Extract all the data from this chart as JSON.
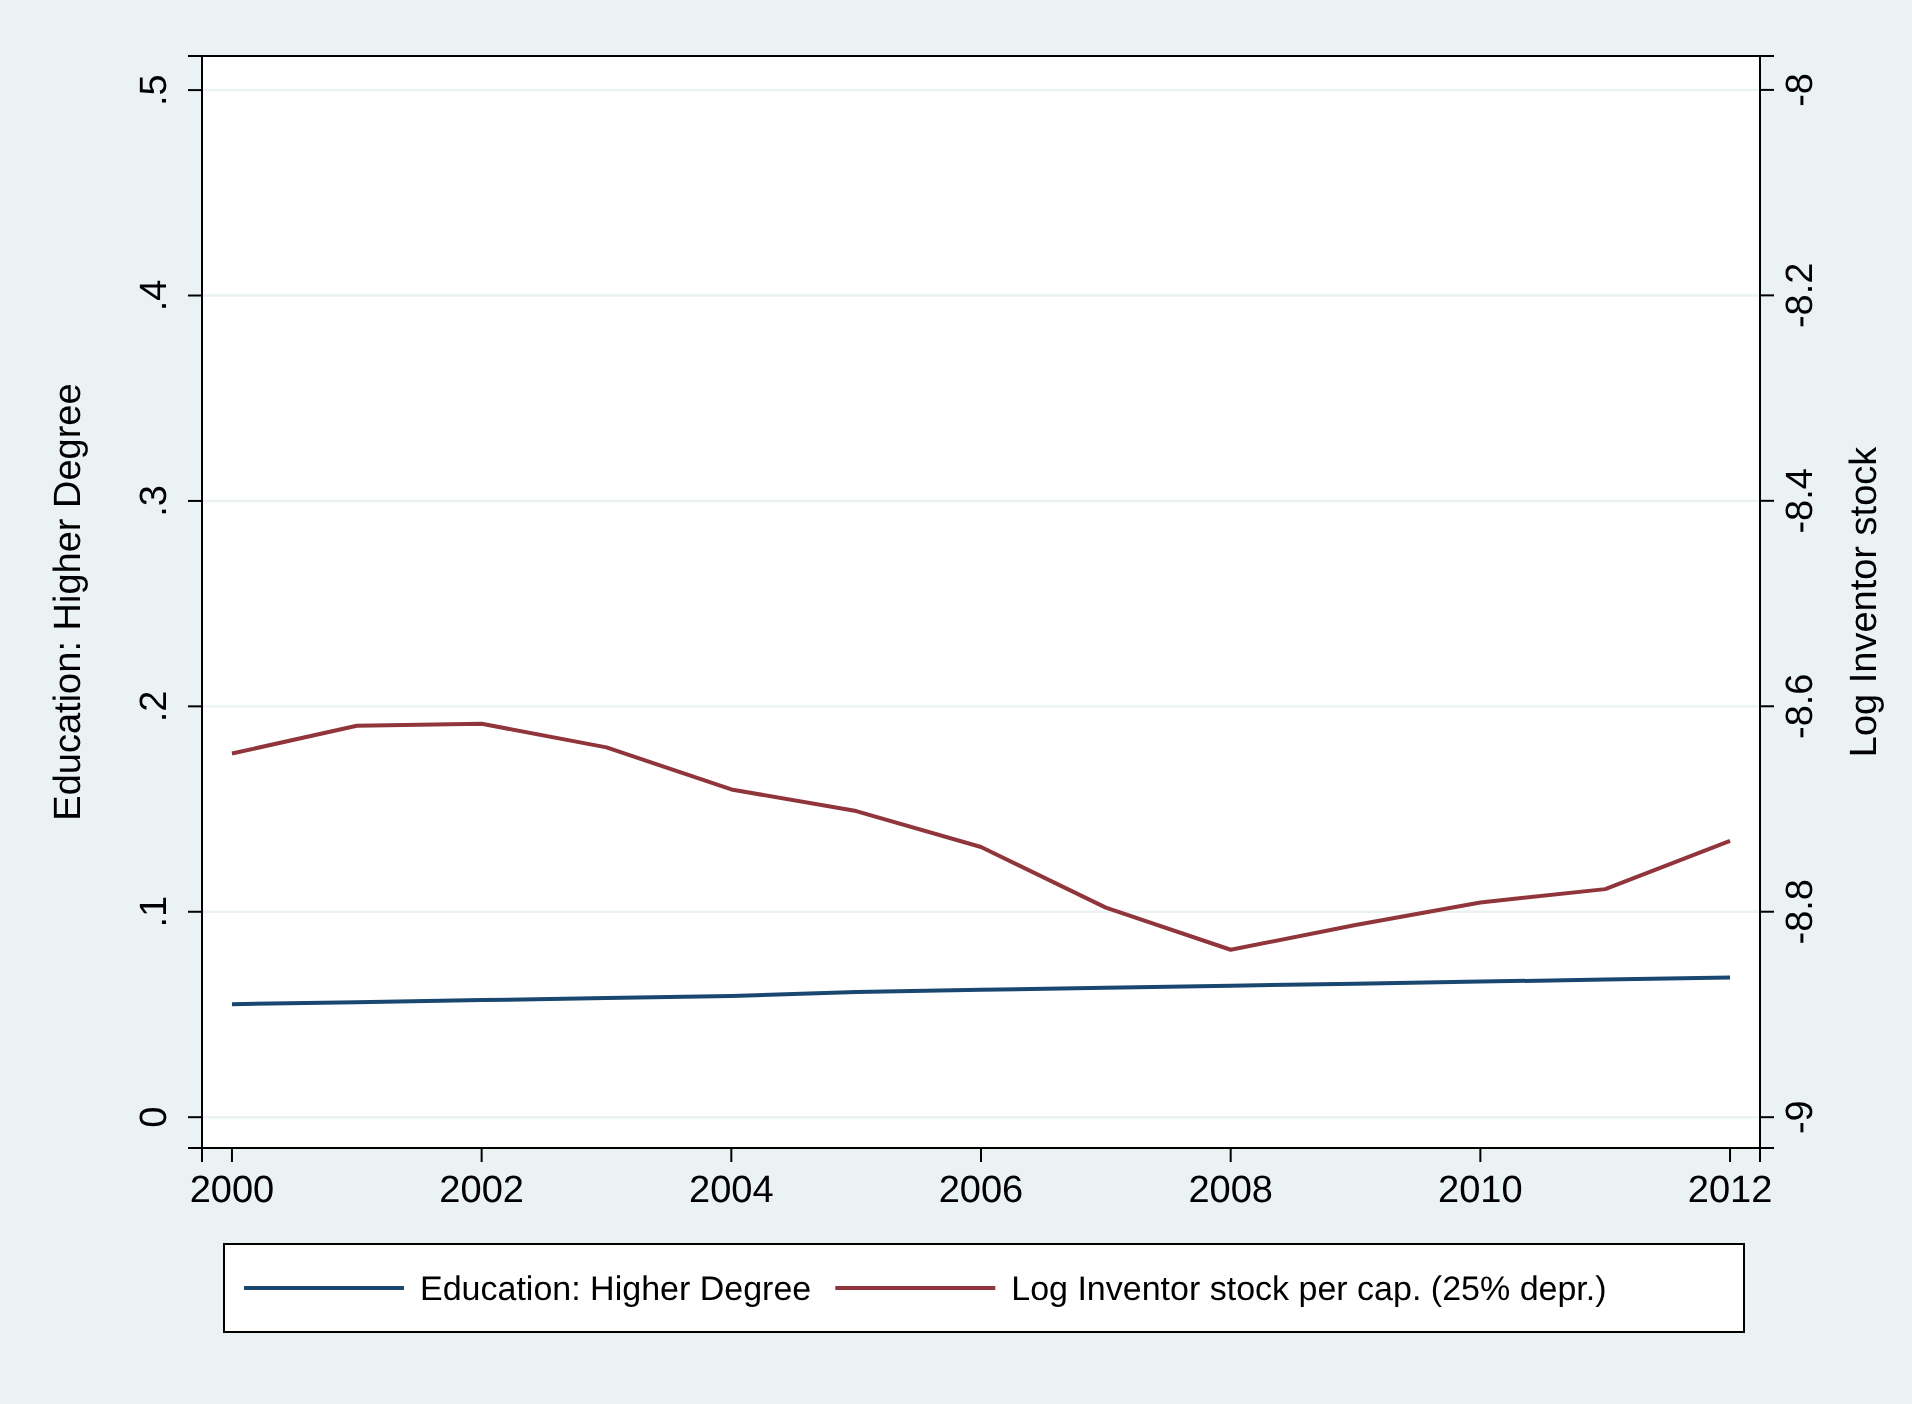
{
  "chart_data": {
    "type": "line",
    "ylabel": "Education: Higher Degree",
    "y2label": "Log Inventor stock",
    "x": [
      2000,
      2001,
      2002,
      2003,
      2004,
      2005,
      2006,
      2007,
      2008,
      2009,
      2010,
      2011,
      2012
    ],
    "xlim": [
      1999.76,
      2012.24
    ],
    "xticks": [
      2000,
      2002,
      2004,
      2006,
      2008,
      2010,
      2012
    ],
    "ylim": [
      -0.015,
      0.5166
    ],
    "yticks": [
      {
        "value": 0,
        "label": "0"
      },
      {
        "value": 0.1,
        "label": ".1"
      },
      {
        "value": 0.2,
        "label": ".2"
      },
      {
        "value": 0.3,
        "label": ".3"
      },
      {
        "value": 0.4,
        "label": ".4"
      },
      {
        "value": 0.5,
        "label": ".5"
      }
    ],
    "y2lim": [
      -9.03,
      -7.967
    ],
    "y2ticks": [
      -9,
      -8.8,
      -8.6,
      -8.4,
      -8.2,
      -8
    ],
    "grid": "y",
    "legend": "bottom",
    "line_style": "solid",
    "series": [
      {
        "name": "Education: Higher Degree",
        "color": "#1a476f",
        "values": [
          0.055,
          0.056,
          0.057,
          0.058,
          0.059,
          0.061,
          0.062,
          0.063,
          0.064,
          0.065,
          0.066,
          0.067,
          0.068
        ]
      },
      {
        "name": "Log Inventor stock per cap. (25% depr.)",
        "color": "#90353b",
        "axis": "y2",
        "values": [
          -8.646,
          -8.619,
          -8.617,
          -8.64,
          -8.681,
          -8.702,
          -8.737,
          -8.796,
          -8.837,
          -8.813,
          -8.791,
          -8.778,
          -8.731
        ]
      }
    ]
  }
}
